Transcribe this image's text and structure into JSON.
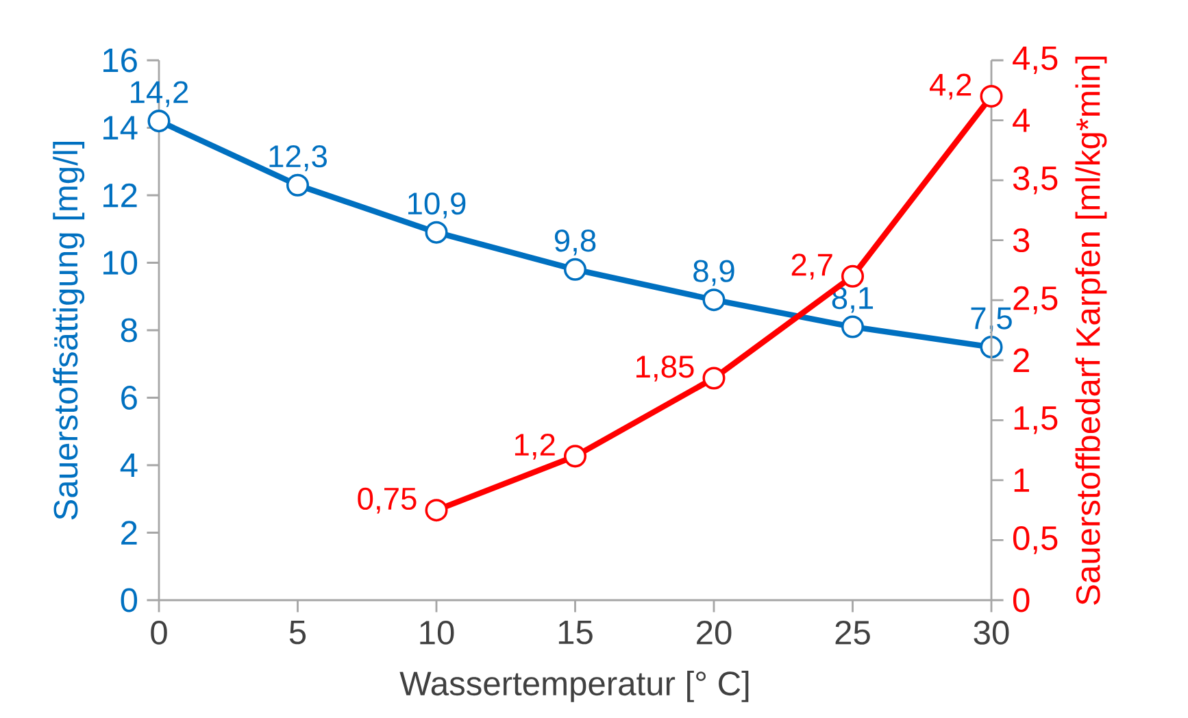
{
  "chart_data": {
    "type": "line",
    "xlabel": "Wassertemperatur [° C]",
    "ylabel": "Sauerstoffsättigung [mg/l]",
    "y2label": "Sauerstoffbedarf Karpfen [ml/kg*min]",
    "marker": "circle",
    "xlim": [
      0,
      30
    ],
    "xticks": [
      0,
      5,
      10,
      15,
      20,
      25,
      30
    ],
    "ylim": [
      0,
      16
    ],
    "yticks": [
      0,
      2,
      4,
      6,
      8,
      10,
      12,
      14,
      16
    ],
    "y2lim": [
      0,
      4.5
    ],
    "y2ticks": [
      0,
      {
        "value": 0.5,
        "label": "0,5"
      },
      1,
      {
        "value": 1.5,
        "label": "1,5"
      },
      2,
      {
        "value": 2.5,
        "label": "2,5"
      },
      3,
      {
        "value": 3.5,
        "label": "3,5"
      },
      4,
      {
        "value": 4.5,
        "label": "4,5"
      }
    ],
    "series": [
      {
        "color": "#0070c0",
        "x": [
          0,
          5,
          10,
          15,
          20,
          25,
          30
        ],
        "values": [
          14.2,
          12.3,
          10.9,
          9.8,
          8.9,
          8.1,
          7.5
        ],
        "value_labels": [
          "14,2",
          "12,3",
          "10,9",
          "9,8",
          "8,9",
          "8,1",
          "7,5"
        ]
      },
      {
        "color": "#ff0000",
        "axis": "y2",
        "x": [
          10,
          15,
          20,
          25,
          30
        ],
        "values": [
          0.75,
          1.2,
          1.85,
          2.7,
          4.2
        ],
        "value_labels": [
          "0,75",
          "1,2",
          "1,85",
          "2,7",
          "4,2"
        ]
      }
    ]
  }
}
